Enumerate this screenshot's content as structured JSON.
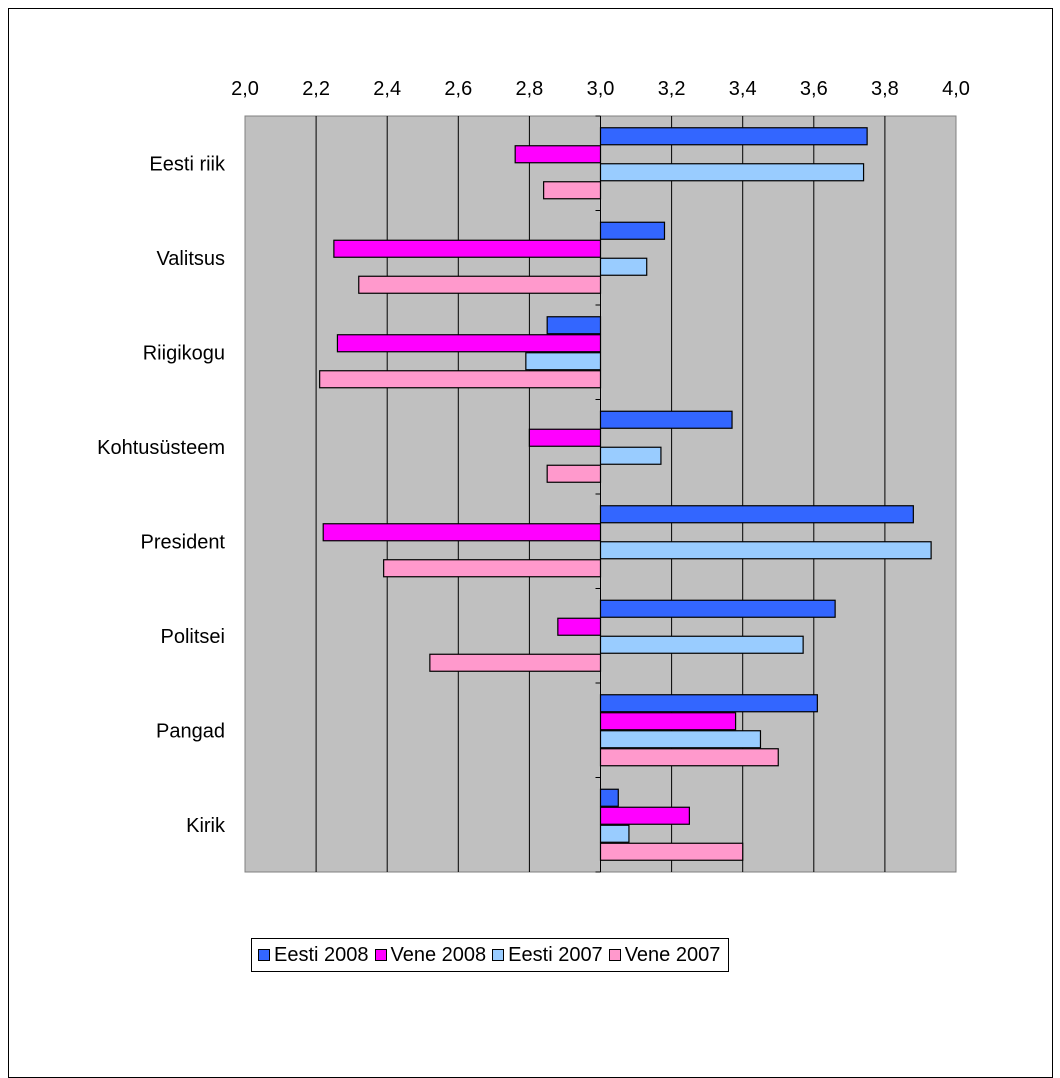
{
  "chart_data": {
    "type": "bar",
    "orientation": "horizontal",
    "title": "",
    "xlabel": "",
    "ylabel": "",
    "xlim": [
      2.0,
      4.0
    ],
    "x_ticks": [
      "2,0",
      "2,2",
      "2,4",
      "2,6",
      "2,8",
      "3,0",
      "3,2",
      "3,4",
      "3,6",
      "3,8",
      "4,0"
    ],
    "baseline": 3.0,
    "grid": "vertical",
    "plot_background": "#C0C0C0",
    "legend_position": "bottom",
    "categories": [
      "Eesti riik",
      "Valitsus",
      "Riigikogu",
      "Kohtusüsteem",
      "President",
      "Politsei",
      "Pangad",
      "Kirik"
    ],
    "series": [
      {
        "name": "Eesti 2008",
        "color": "#3366FF",
        "values": [
          3.75,
          3.18,
          2.85,
          3.37,
          3.88,
          3.66,
          3.61,
          3.05
        ]
      },
      {
        "name": "Vene 2008",
        "color": "#FF00FF",
        "values": [
          2.76,
          2.25,
          2.26,
          2.8,
          2.22,
          2.88,
          3.38,
          3.25
        ]
      },
      {
        "name": "Eesti 2007",
        "color": "#99CCFF",
        "values": [
          3.74,
          3.13,
          2.79,
          3.17,
          3.93,
          3.57,
          3.45,
          3.08
        ]
      },
      {
        "name": "Vene 2007",
        "color": "#FF99CC",
        "values": [
          2.84,
          2.32,
          2.21,
          2.85,
          2.39,
          2.52,
          3.5,
          3.4
        ]
      }
    ]
  }
}
